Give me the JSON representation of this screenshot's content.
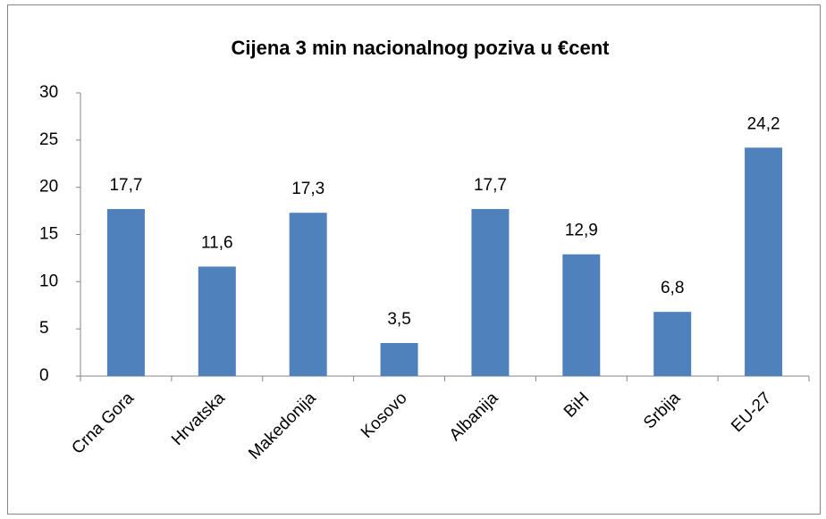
{
  "chart_data": {
    "type": "bar",
    "title": "Cijena 3 min nacionalnog poziva u €cent",
    "categories": [
      "Crna Gora",
      "Hrvatska",
      "Makedonija",
      "Kosovo",
      "Albanija",
      "BiH",
      "Srbija",
      "EU-27"
    ],
    "values": [
      17.7,
      11.6,
      17.3,
      3.5,
      17.7,
      12.9,
      6.8,
      24.2
    ],
    "value_labels": [
      "17,7",
      "11,6",
      "17,3",
      "3,5",
      "17,7",
      "12,9",
      "6,8",
      "24,2"
    ],
    "color": "#4f81bd",
    "ylim": [
      0,
      30
    ],
    "yticks": [
      0,
      5,
      10,
      15,
      20,
      25,
      30
    ],
    "grid": false
  }
}
